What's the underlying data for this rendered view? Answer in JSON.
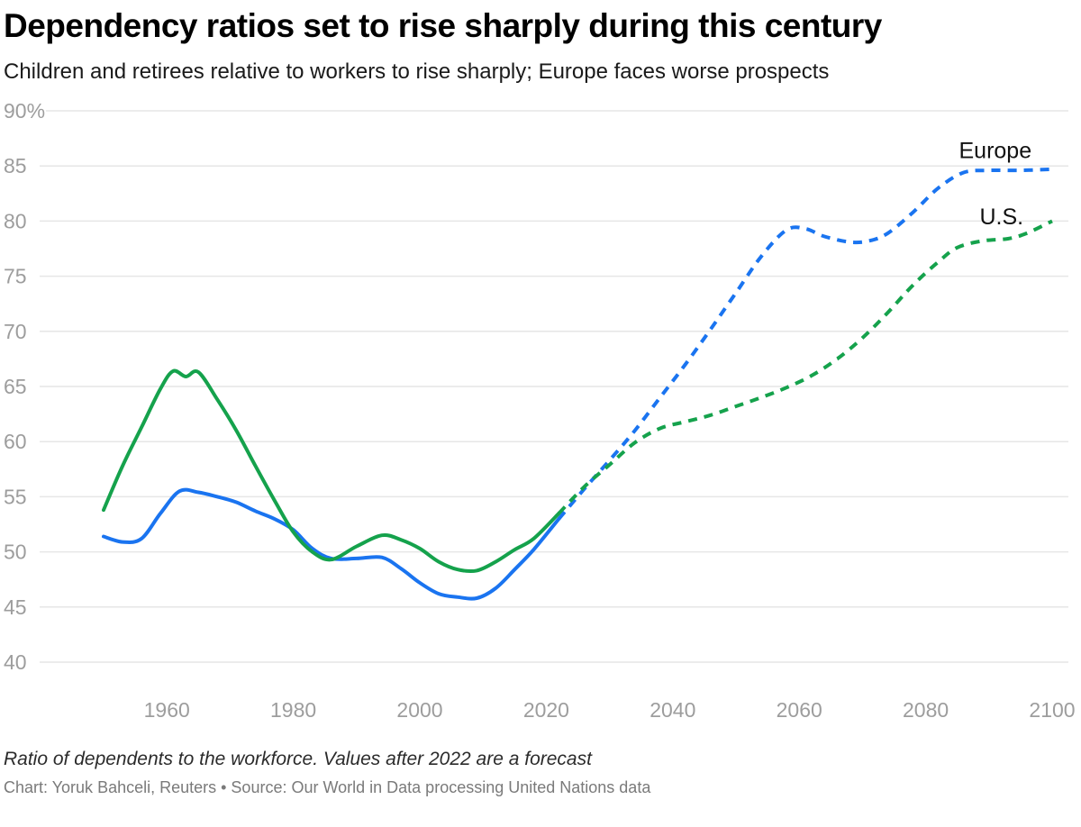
{
  "chart_data": {
    "type": "line",
    "title": "Dependency ratios set to rise sharply during this century",
    "subtitle": "Children and retirees relative to workers to rise sharply; Europe faces worse prospects",
    "note": "Ratio of dependents to the workforce. Values after 2022 are a forecast",
    "credit": "Chart: Yoruk Bahceli, Reuters • Source: Our World in Data processing United Nations data",
    "xlim": [
      1950,
      2100
    ],
    "ylim": [
      40,
      90
    ],
    "forecast_from": 2022,
    "grid": "horizontal",
    "legend_position": "end-of-line-labels",
    "colors": {
      "grid": "#e6e6e6",
      "tick_label": "#9d9d9d",
      "annotation": "#111111",
      "background": "#ffffff"
    },
    "y_ticks": [
      {
        "value": 90,
        "label": "90%"
      },
      {
        "value": 85,
        "label": "85"
      },
      {
        "value": 80,
        "label": "80"
      },
      {
        "value": 75,
        "label": "75"
      },
      {
        "value": 70,
        "label": "70"
      },
      {
        "value": 65,
        "label": "65"
      },
      {
        "value": 60,
        "label": "60"
      },
      {
        "value": 55,
        "label": "55"
      },
      {
        "value": 50,
        "label": "50"
      },
      {
        "value": 45,
        "label": "45"
      },
      {
        "value": 40,
        "label": "40"
      }
    ],
    "x_ticks": [
      {
        "value": 1960,
        "label": "1960"
      },
      {
        "value": 1980,
        "label": "1980"
      },
      {
        "value": 2000,
        "label": "2000"
      },
      {
        "value": 2020,
        "label": "2020"
      },
      {
        "value": 2040,
        "label": "2040"
      },
      {
        "value": 2060,
        "label": "2060"
      },
      {
        "value": 2080,
        "label": "2080"
      },
      {
        "value": 2100,
        "label": "2100"
      }
    ],
    "series": [
      {
        "name": "Europe",
        "color": "#1a74f0",
        "points": [
          [
            1950,
            51.4
          ],
          [
            1953,
            50.9
          ],
          [
            1956,
            51.2
          ],
          [
            1959,
            53.5
          ],
          [
            1962,
            55.5
          ],
          [
            1965,
            55.4
          ],
          [
            1968,
            55.0
          ],
          [
            1971,
            54.5
          ],
          [
            1974,
            53.7
          ],
          [
            1977,
            53.0
          ],
          [
            1980,
            52.0
          ],
          [
            1983,
            50.3
          ],
          [
            1986,
            49.4
          ],
          [
            1990,
            49.4
          ],
          [
            1994,
            49.5
          ],
          [
            1997,
            48.5
          ],
          [
            2000,
            47.2
          ],
          [
            2003,
            46.2
          ],
          [
            2006,
            45.9
          ],
          [
            2009,
            45.8
          ],
          [
            2012,
            46.7
          ],
          [
            2015,
            48.4
          ],
          [
            2018,
            50.2
          ],
          [
            2022,
            53.0
          ],
          [
            2026,
            55.7
          ],
          [
            2030,
            58.3
          ],
          [
            2034,
            61.0
          ],
          [
            2038,
            64.0
          ],
          [
            2042,
            67.0
          ],
          [
            2046,
            70.2
          ],
          [
            2050,
            73.5
          ],
          [
            2054,
            76.8
          ],
          [
            2058,
            79.2
          ],
          [
            2061,
            79.3
          ],
          [
            2064,
            78.6
          ],
          [
            2068,
            78.1
          ],
          [
            2071,
            78.2
          ],
          [
            2074,
            78.9
          ],
          [
            2078,
            80.8
          ],
          [
            2082,
            83.0
          ],
          [
            2086,
            84.4
          ],
          [
            2090,
            84.6
          ],
          [
            2095,
            84.6
          ],
          [
            2100,
            84.7
          ]
        ]
      },
      {
        "name": "U.S.",
        "color": "#15a24c",
        "points": [
          [
            1950,
            53.8
          ],
          [
            1953,
            57.8
          ],
          [
            1956,
            61.3
          ],
          [
            1959,
            64.8
          ],
          [
            1961,
            66.4
          ],
          [
            1963,
            65.9
          ],
          [
            1965,
            66.3
          ],
          [
            1968,
            63.8
          ],
          [
            1971,
            61.0
          ],
          [
            1974,
            57.8
          ],
          [
            1977,
            54.7
          ],
          [
            1980,
            51.8
          ],
          [
            1983,
            50.0
          ],
          [
            1986,
            49.3
          ],
          [
            1990,
            50.5
          ],
          [
            1994,
            51.5
          ],
          [
            1997,
            51.1
          ],
          [
            2000,
            50.3
          ],
          [
            2003,
            49.1
          ],
          [
            2006,
            48.4
          ],
          [
            2009,
            48.3
          ],
          [
            2012,
            49.1
          ],
          [
            2015,
            50.2
          ],
          [
            2018,
            51.2
          ],
          [
            2022,
            53.5
          ],
          [
            2026,
            55.9
          ],
          [
            2030,
            57.9
          ],
          [
            2034,
            59.9
          ],
          [
            2038,
            61.2
          ],
          [
            2042,
            61.8
          ],
          [
            2046,
            62.4
          ],
          [
            2050,
            63.2
          ],
          [
            2054,
            64.0
          ],
          [
            2058,
            64.9
          ],
          [
            2062,
            66.0
          ],
          [
            2066,
            67.5
          ],
          [
            2070,
            69.4
          ],
          [
            2074,
            71.7
          ],
          [
            2078,
            74.2
          ],
          [
            2082,
            76.3
          ],
          [
            2085,
            77.6
          ],
          [
            2089,
            78.2
          ],
          [
            2093,
            78.4
          ],
          [
            2096,
            78.9
          ],
          [
            2100,
            80.0
          ]
        ]
      }
    ],
    "annotations": [
      {
        "text": "Europe",
        "x": 2091,
        "y": 85.7
      },
      {
        "text": "U.S.",
        "x": 2092,
        "y": 79.7
      }
    ]
  }
}
